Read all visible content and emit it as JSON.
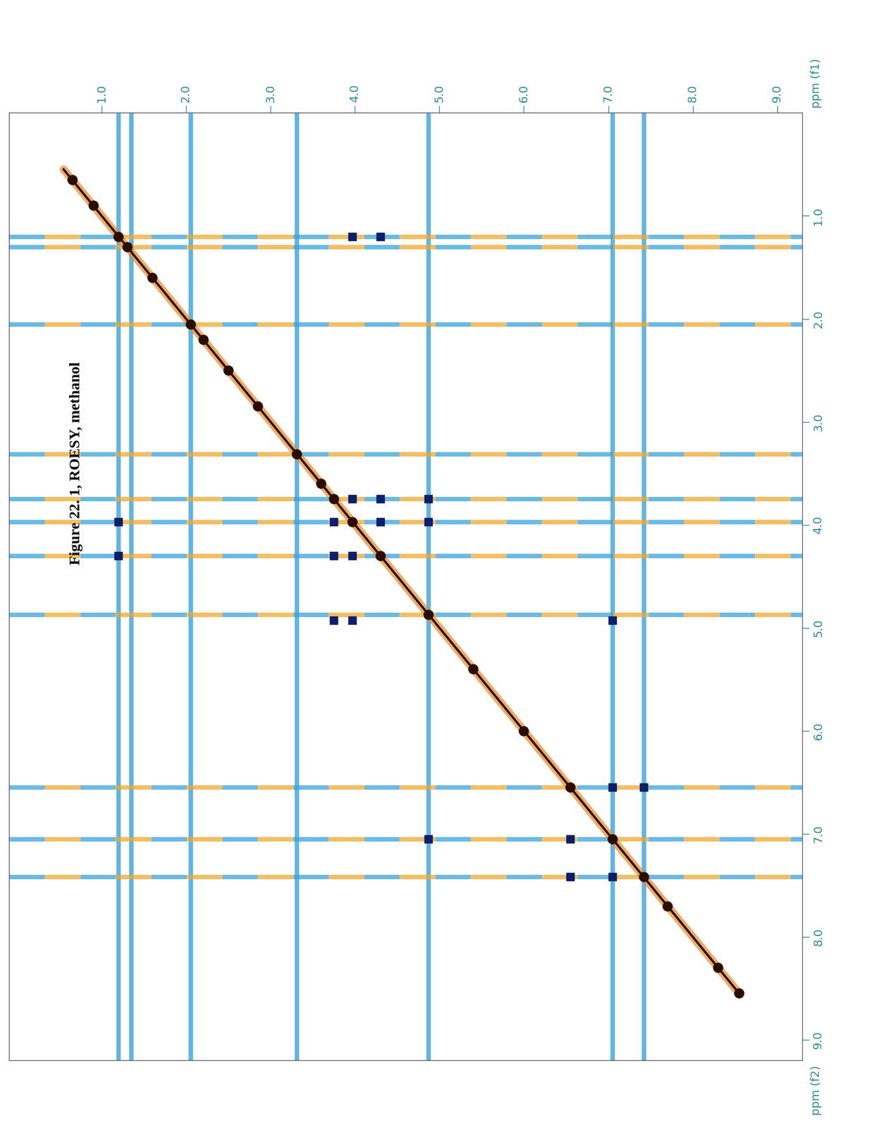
{
  "chart_data": {
    "type": "nmr_2d",
    "title": "Figure 22. 1, ROESY, methanol",
    "x_label": "ppm (f1)",
    "y_label": "ppm (f2)",
    "xlim": [
      -0.1,
      9.3
    ],
    "ylim": [
      9.2,
      0.0
    ],
    "xticks": [
      {
        "value": 1,
        "label": "1.0"
      },
      {
        "value": 2,
        "label": "2.0"
      },
      {
        "value": 3,
        "label": "3.0"
      },
      {
        "value": 4,
        "label": "4.0"
      },
      {
        "value": 5,
        "label": "5.0"
      },
      {
        "value": 6,
        "label": "6.0"
      },
      {
        "value": 7,
        "label": "7.0"
      },
      {
        "value": 8,
        "label": "8.0"
      },
      {
        "value": 9,
        "label": "9.0"
      }
    ],
    "yticks": [
      {
        "value": 1,
        "label": "1.0"
      },
      {
        "value": 2,
        "label": "2.0"
      },
      {
        "value": 3,
        "label": "3.0"
      },
      {
        "value": 4,
        "label": "4.0"
      },
      {
        "value": 5,
        "label": "5.0"
      },
      {
        "value": 6,
        "label": "6.0"
      },
      {
        "value": 7,
        "label": "7.0"
      },
      {
        "value": 8,
        "label": "8.0"
      },
      {
        "value": 9,
        "label": "9.0"
      }
    ],
    "grid": false,
    "tick_labels": true,
    "diagonal": {
      "range": [
        0.55,
        8.55
      ],
      "color": "#e8892a"
    },
    "diagonal_peaks": {
      "values": [
        0.65,
        0.9,
        1.2,
        1.3,
        1.6,
        2.05,
        2.2,
        2.5,
        2.85,
        3.31,
        3.6,
        3.75,
        3.97,
        4.3,
        4.87,
        5.4,
        6.0,
        6.55,
        7.05,
        7.42,
        7.7,
        8.3,
        8.55
      ],
      "color": "#2b0d00"
    },
    "streaks": {
      "f1": [
        1.2,
        1.35,
        2.05,
        3.31,
        4.87,
        7.05,
        7.42
      ],
      "f2": [
        1.2,
        1.3,
        2.05,
        3.31,
        3.75,
        3.97,
        4.3,
        4.87,
        6.55,
        7.05,
        7.42
      ],
      "colors": [
        "#3aa3dc",
        "#f0a830"
      ]
    },
    "cross_peaks": {
      "f1": [
        3.97,
        4.3,
        1.2,
        1.2,
        3.97,
        4.3,
        3.75,
        4.3,
        3.75,
        3.97,
        4.87,
        4.87,
        3.75,
        3.97,
        7.05,
        7.42,
        6.55,
        4.87,
        6.55,
        7.05,
        7.05
      ],
      "f2": [
        1.2,
        1.2,
        3.97,
        4.3,
        3.75,
        3.75,
        3.97,
        3.97,
        4.3,
        4.3,
        3.75,
        3.97,
        4.93,
        4.93,
        6.55,
        6.55,
        7.05,
        7.05,
        7.42,
        7.42,
        4.93
      ],
      "color": "#0b1f6b"
    }
  }
}
